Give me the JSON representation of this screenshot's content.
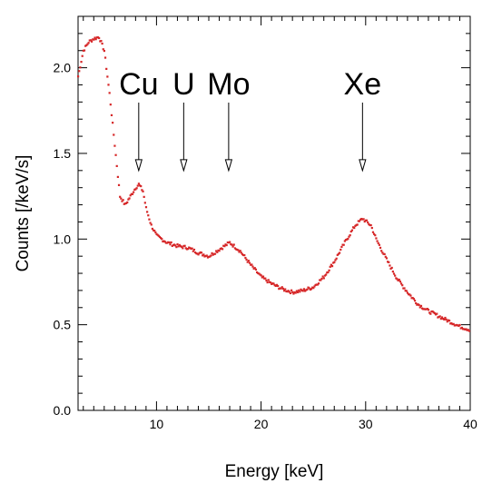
{
  "chart_data": {
    "type": "scatter",
    "title": "",
    "xlabel": "Energy [keV]",
    "ylabel": "Counts [/keV/s]",
    "xlim": [
      2.5,
      40
    ],
    "ylim": [
      0,
      2.3
    ],
    "xticks": [
      10,
      20,
      30,
      40
    ],
    "xtick_labels": [
      "10",
      "20",
      "30",
      "40"
    ],
    "yticks": [
      0,
      0.5,
      1.0,
      1.5,
      2.0
    ],
    "ytick_labels": [
      "0.0",
      "0.5",
      "1.0",
      "1.5",
      "2.0"
    ],
    "grid": false,
    "legend": "none",
    "marker_color": "#d62728",
    "annotations": [
      {
        "label": "Cu",
        "x": 8.3,
        "y_tip": 1.4
      },
      {
        "label": "U",
        "x": 12.6,
        "y_tip": 1.4
      },
      {
        "label": "Mo",
        "x": 16.9,
        "y_tip": 1.4
      },
      {
        "label": "Xe",
        "x": 29.7,
        "y_tip": 1.4
      }
    ],
    "series": [
      {
        "x": [
          2.5,
          3.0,
          3.5,
          4.0,
          4.5,
          5.0,
          5.5,
          6.0,
          6.5,
          7.0,
          7.5,
          8.0,
          8.3,
          8.7,
          9.0,
          9.5,
          10,
          11,
          12,
          13,
          14,
          15,
          16,
          17,
          18,
          19,
          20,
          21,
          22,
          23,
          24,
          25,
          26,
          27,
          28,
          29,
          29.7,
          30.5,
          31,
          32,
          33,
          34,
          35,
          36,
          37,
          38,
          39,
          40
        ],
        "y": [
          1.95,
          2.1,
          2.15,
          2.17,
          2.18,
          2.1,
          1.85,
          1.55,
          1.25,
          1.2,
          1.25,
          1.3,
          1.32,
          1.28,
          1.18,
          1.08,
          1.02,
          0.98,
          0.96,
          0.95,
          0.92,
          0.9,
          0.94,
          0.98,
          0.93,
          0.85,
          0.78,
          0.74,
          0.71,
          0.69,
          0.7,
          0.72,
          0.78,
          0.87,
          0.98,
          1.08,
          1.12,
          1.08,
          1.0,
          0.88,
          0.77,
          0.69,
          0.62,
          0.58,
          0.55,
          0.52,
          0.49,
          0.47
        ]
      }
    ]
  }
}
